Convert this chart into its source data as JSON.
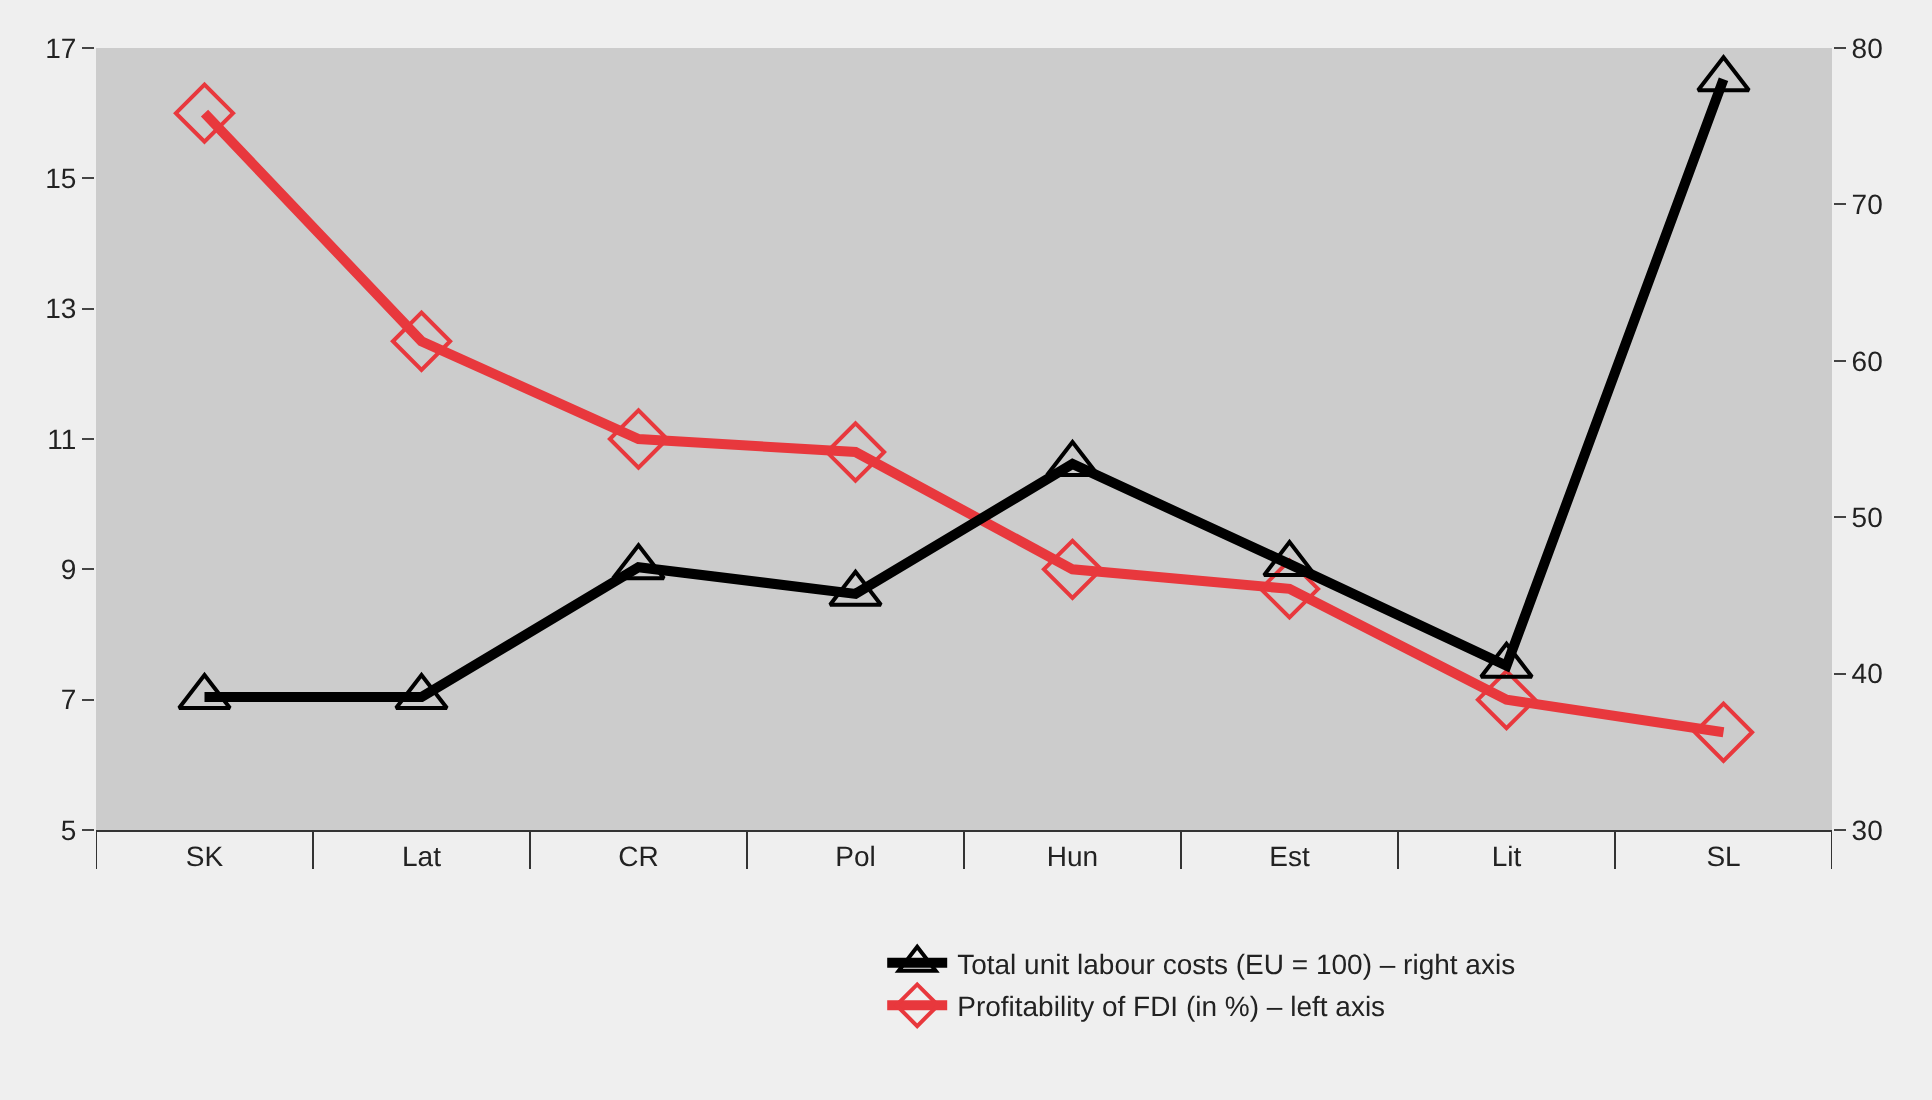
{
  "chart_data": {
    "type": "line",
    "categories": [
      "SK",
      "Lat",
      "CR",
      "Pol",
      "Hun",
      "Est",
      "Lit",
      "SL"
    ],
    "series": [
      {
        "name": "Total unit labour costs (EU = 100) – right axis",
        "color": "#000000",
        "axis": "y2",
        "marker": "triangle",
        "values": [
          38.5,
          38.5,
          46.8,
          45.1,
          53.4,
          47,
          40.5,
          78
        ]
      },
      {
        "name": "Profitability of FDI (in %) – left axis",
        "color": "#e8383d",
        "marker": "diamond",
        "values": [
          16.0,
          12.5,
          11.0,
          10.8,
          9.0,
          8.7,
          7.0,
          6.5
        ]
      }
    ],
    "ylim": [
      5,
      17
    ],
    "yticks": [
      5,
      7,
      9,
      11,
      13,
      15,
      17
    ],
    "y2lim": [
      30,
      80
    ],
    "y2ticks": [
      30,
      40,
      50,
      60,
      70,
      80
    ],
    "grid": false,
    "legend": "bottom",
    "line_style": "solid"
  }
}
